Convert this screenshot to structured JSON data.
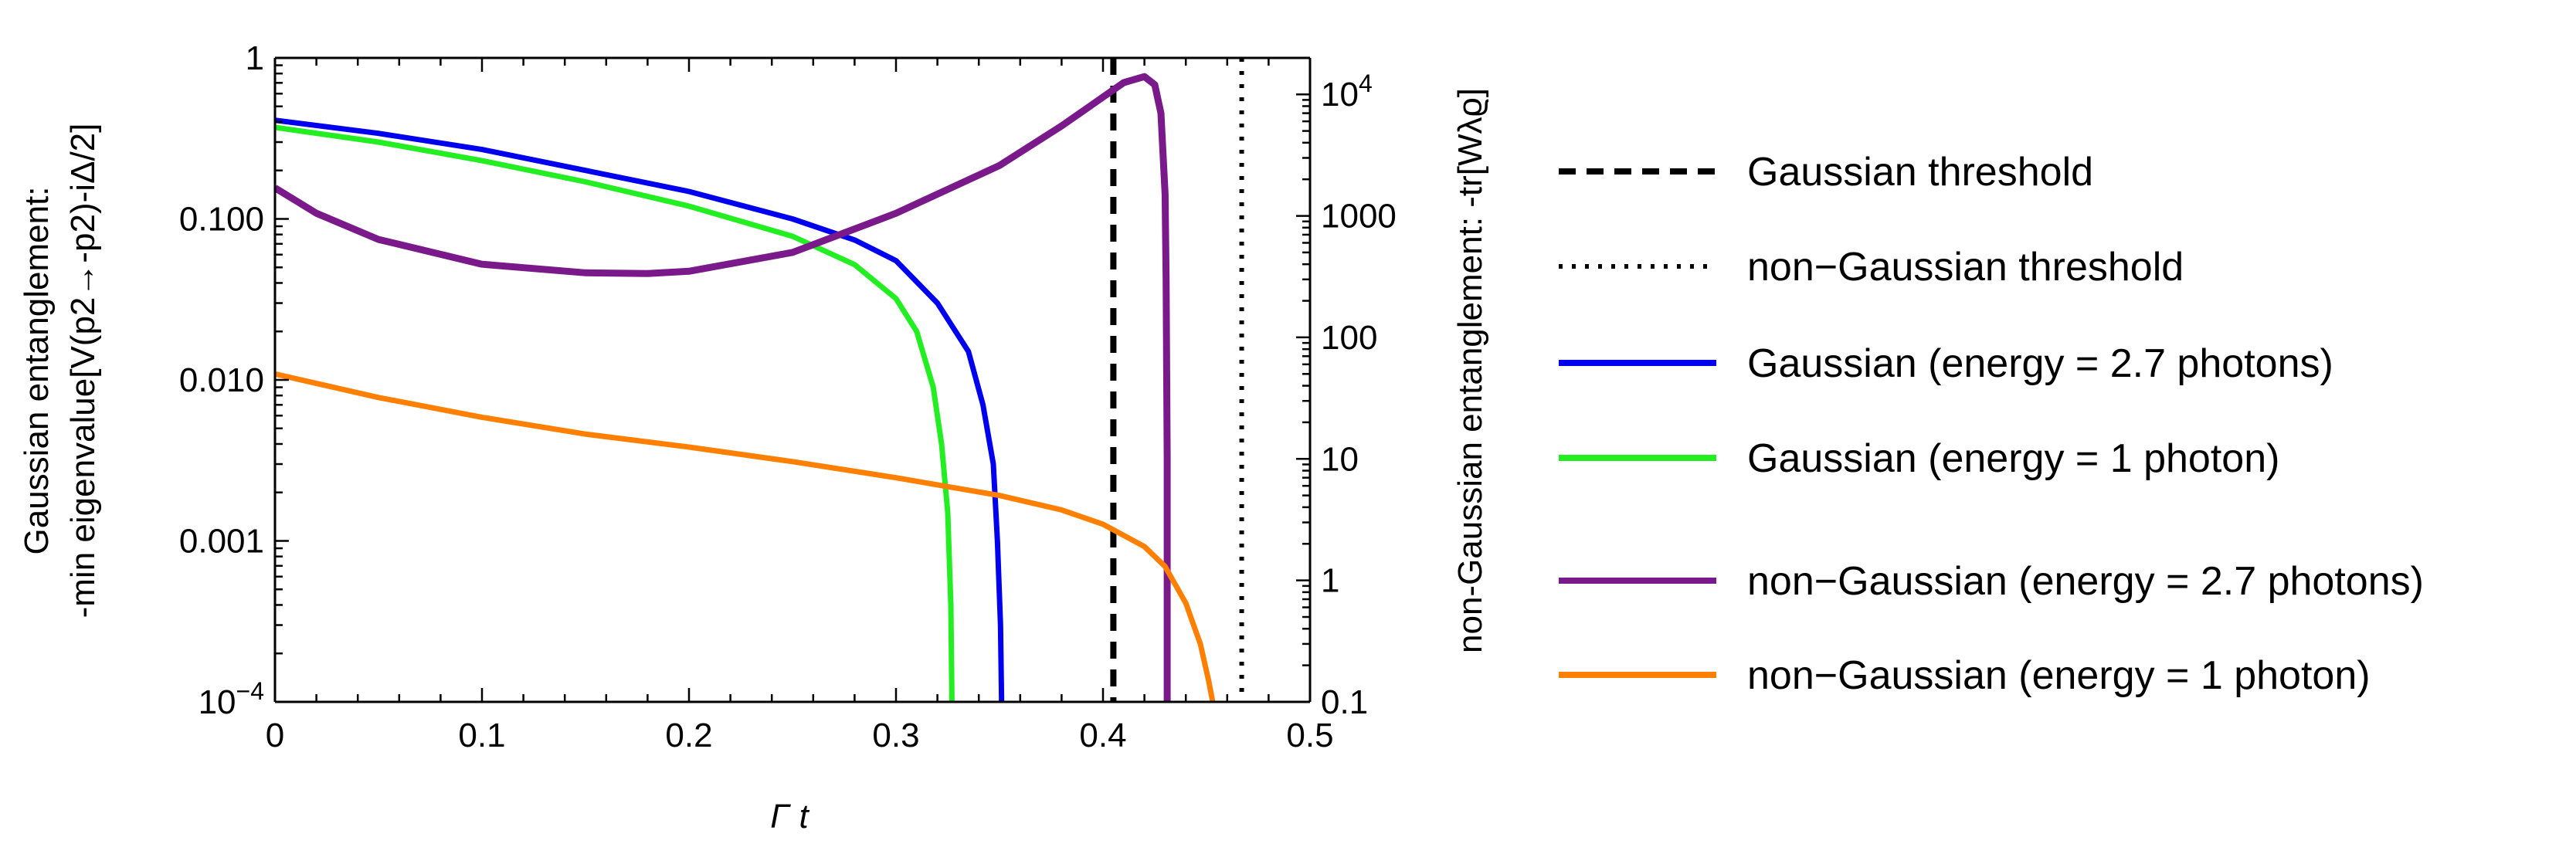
{
  "chart_data": {
    "type": "line",
    "xlabel": "Γ t",
    "ylabel_left": {
      "line1": "Gaussian entanglement:",
      "line2": "-min eigenvalue[V(p2→-p2)-iΔ/2]"
    },
    "ylabel_right": "non-Gaussian entanglement: -tr[Wλϱ]",
    "xlim": [
      0,
      0.5
    ],
    "ylim_left_log10": [
      -4,
      0
    ],
    "ylim_right_log10": [
      -1,
      4.3
    ],
    "x_ticks": [
      {
        "value": 0,
        "label": "0"
      },
      {
        "value": 0.1,
        "label": "0.1"
      },
      {
        "value": 0.2,
        "label": "0.2"
      },
      {
        "value": 0.3,
        "label": "0.3"
      },
      {
        "value": 0.4,
        "label": "0.4"
      },
      {
        "value": 0.5,
        "label": "0.5"
      }
    ],
    "left_ticks": [
      {
        "value": 1,
        "label": "1"
      },
      {
        "value": 0.1,
        "label": "0.100"
      },
      {
        "value": 0.01,
        "label": "0.010"
      },
      {
        "value": 0.001,
        "label": "0.001"
      },
      {
        "value": 0.0001,
        "label": "10",
        "sup": "−4"
      }
    ],
    "right_ticks": [
      {
        "value": 10000,
        "label": "10",
        "sup": "4"
      },
      {
        "value": 1000,
        "label": "1000"
      },
      {
        "value": 100,
        "label": "100"
      },
      {
        "value": 10,
        "label": "10"
      },
      {
        "value": 1,
        "label": "1"
      },
      {
        "value": 0.1,
        "label": "0.1"
      }
    ],
    "thresholds": [
      {
        "name": "Gaussian threshold",
        "x": 0.405,
        "style": "dashed",
        "color": "#000000"
      },
      {
        "name": "non-Gaussian threshold",
        "x": 0.467,
        "style": "dotted",
        "color": "#000000"
      }
    ],
    "series": [
      {
        "name": "Gaussian (energy = 2.7 photons)",
        "axis": "left",
        "color": "#0000ee",
        "points": [
          [
            0,
            0.41
          ],
          [
            0.05,
            0.34
          ],
          [
            0.1,
            0.27
          ],
          [
            0.15,
            0.2
          ],
          [
            0.2,
            0.148
          ],
          [
            0.25,
            0.1
          ],
          [
            0.28,
            0.074
          ],
          [
            0.3,
            0.055
          ],
          [
            0.32,
            0.03
          ],
          [
            0.335,
            0.015
          ],
          [
            0.342,
            0.007
          ],
          [
            0.347,
            0.003
          ],
          [
            0.349,
            0.001
          ],
          [
            0.3505,
            0.0003
          ],
          [
            0.351,
            0.0001
          ]
        ]
      },
      {
        "name": "Gaussian (energy = 1 photon)",
        "axis": "left",
        "color": "#22ee22",
        "points": [
          [
            0,
            0.37
          ],
          [
            0.05,
            0.3
          ],
          [
            0.1,
            0.23
          ],
          [
            0.15,
            0.17
          ],
          [
            0.2,
            0.12
          ],
          [
            0.25,
            0.078
          ],
          [
            0.28,
            0.052
          ],
          [
            0.3,
            0.032
          ],
          [
            0.31,
            0.02
          ],
          [
            0.318,
            0.009
          ],
          [
            0.322,
            0.004
          ],
          [
            0.325,
            0.0015
          ],
          [
            0.3265,
            0.0004
          ],
          [
            0.327,
            0.0001
          ]
        ]
      },
      {
        "name": "non-Gaussian (energy = 2.7 photons)",
        "axis": "right",
        "color": "#7a1a8a",
        "points": [
          [
            0,
            1700
          ],
          [
            0.02,
            1050
          ],
          [
            0.05,
            640
          ],
          [
            0.1,
            400
          ],
          [
            0.15,
            340
          ],
          [
            0.18,
            335
          ],
          [
            0.2,
            350
          ],
          [
            0.25,
            500
          ],
          [
            0.3,
            1050
          ],
          [
            0.35,
            2600
          ],
          [
            0.38,
            5500
          ],
          [
            0.4,
            9500
          ],
          [
            0.41,
            12500
          ],
          [
            0.42,
            14000
          ],
          [
            0.425,
            12000
          ],
          [
            0.428,
            7000
          ],
          [
            0.43,
            1500
          ],
          [
            0.4305,
            300
          ],
          [
            0.431,
            10
          ],
          [
            0.431,
            0.1
          ]
        ]
      },
      {
        "name": "non-Gaussian (energy = 1 photon)",
        "axis": "right",
        "color": "#ff8000",
        "points": [
          [
            0,
            50
          ],
          [
            0.05,
            32
          ],
          [
            0.1,
            22
          ],
          [
            0.15,
            16
          ],
          [
            0.2,
            12.5
          ],
          [
            0.25,
            9.5
          ],
          [
            0.3,
            7
          ],
          [
            0.35,
            5
          ],
          [
            0.38,
            3.8
          ],
          [
            0.4,
            2.9
          ],
          [
            0.42,
            1.9
          ],
          [
            0.43,
            1.3
          ],
          [
            0.44,
            0.65
          ],
          [
            0.447,
            0.3
          ],
          [
            0.451,
            0.15
          ],
          [
            0.453,
            0.1
          ]
        ]
      }
    ],
    "legend": {
      "placement": "right-outside",
      "entries": [
        {
          "label": "Gaussian threshold",
          "color": "#000000",
          "style": "dashed"
        },
        {
          "label": "non−Gaussian threshold",
          "color": "#000000",
          "style": "dotted"
        },
        {
          "label": "Gaussian (energy = 2.7 photons)",
          "color": "#0000ee",
          "style": "solid"
        },
        {
          "label": "Gaussian (energy = 1 photon)",
          "color": "#22ee22",
          "style": "solid"
        },
        {
          "label": "non−Gaussian (energy = 2.7 photons)",
          "color": "#7a1a8a",
          "style": "solid"
        },
        {
          "label": "non−Gaussian (energy = 1 photon)",
          "color": "#ff8000",
          "style": "solid"
        }
      ]
    }
  }
}
